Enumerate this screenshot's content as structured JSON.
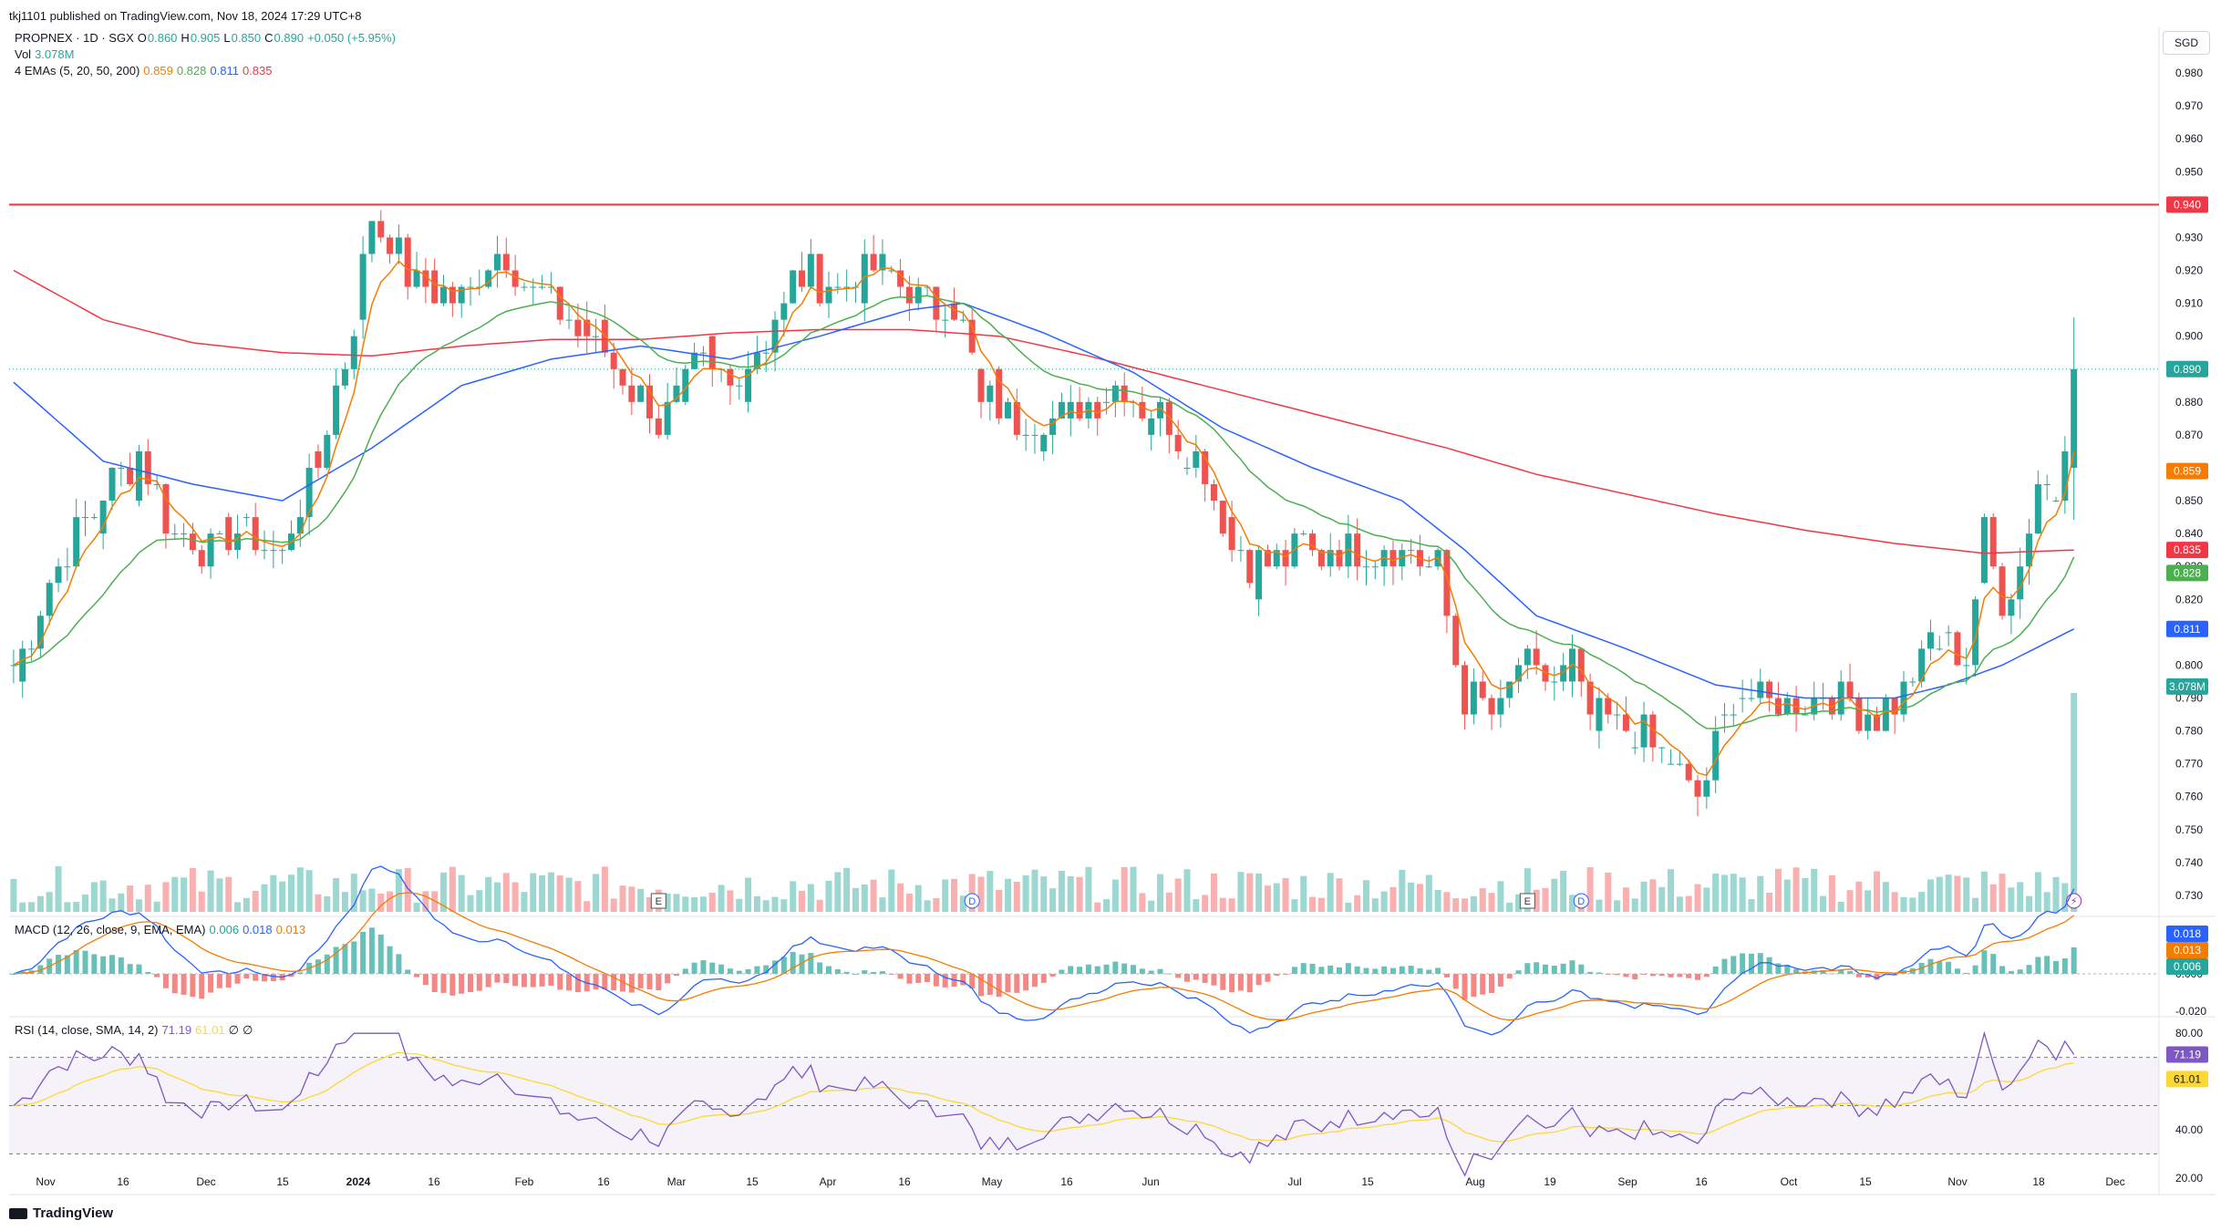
{
  "header": {
    "published": "tkj1101 published on TradingView.com, Nov 18, 2024 17:29 UTC+8",
    "currency": "SGD",
    "brand": "TradingView"
  },
  "legend": {
    "symbol": "PROPNEX · 1D · SGX",
    "o_label": "O",
    "o_value": "0.860",
    "h_label": "H",
    "h_value": "0.905",
    "l_label": "L",
    "l_value": "0.850",
    "c_label": "C",
    "c_value": "0.890",
    "change": "+0.050 (+5.95%)",
    "vol_label": "Vol",
    "vol_value": "3.078M",
    "ema_label": "4 EMAs (5, 20, 50, 200)",
    "ema_values": [
      "0.859",
      "0.828",
      "0.811",
      "0.835"
    ],
    "macd_label": "MACD (12, 26, close, 9, EMA, EMA)",
    "macd_values": [
      "0.006",
      "0.018",
      "0.013"
    ],
    "rsi_label": "RSI (14, close, SMA, 14, 2)",
    "rsi_values": [
      "71.19",
      "61.01",
      "∅",
      "∅"
    ]
  },
  "colors": {
    "up": "#26a69a",
    "down": "#ef5350",
    "ema5": "#f57c00",
    "ema20": "#4caf50",
    "ema50": "#2962ff",
    "ema200": "#f23645",
    "rsi": "#7e57c2",
    "rsi_ma": "#fdd835",
    "level": "#f23645"
  },
  "chart_data": {
    "type": "candlestick",
    "symbol": "PROPNEX",
    "exchange": "SGX",
    "interval": "1D",
    "currency": "SGD",
    "ylim": [
      0.725,
      0.99
    ],
    "price_ticks": [
      "0.980",
      "0.970",
      "0.960",
      "0.950",
      "0.940",
      "0.930",
      "0.920",
      "0.910",
      "0.900",
      "0.890",
      "0.880",
      "0.870",
      "0.860",
      "0.850",
      "0.840",
      "0.830",
      "0.820",
      "0.810",
      "0.800",
      "0.790",
      "0.780",
      "0.770",
      "0.760",
      "0.750",
      "0.740",
      "0.730"
    ],
    "x_labels": [
      "Nov",
      "16",
      "Dec",
      "15",
      "2024",
      "16",
      "Feb",
      "16",
      "Mar",
      "15",
      "Apr",
      "16",
      "May",
      "16",
      "Jun",
      "Jul",
      "15",
      "Aug",
      "19",
      "Sep",
      "16",
      "Oct",
      "15",
      "Nov",
      "18",
      "Dec"
    ],
    "horizontal_line": 0.94,
    "last_price": 0.89,
    "price_badges": [
      "0.940",
      "0.890",
      "0.859",
      "0.835",
      "0.828",
      "0.811",
      "3.078M"
    ],
    "event_markers": [
      "E",
      "D",
      "E",
      "D",
      "⚡"
    ],
    "close_anchors": [
      [
        0,
        0.8
      ],
      [
        6,
        0.835
      ],
      [
        10,
        0.852
      ],
      [
        14,
        0.865
      ],
      [
        18,
        0.84
      ],
      [
        22,
        0.835
      ],
      [
        26,
        0.84
      ],
      [
        30,
        0.835
      ],
      [
        34,
        0.86
      ],
      [
        38,
        0.905
      ],
      [
        40,
        0.935
      ],
      [
        42,
        0.93
      ],
      [
        45,
        0.915
      ],
      [
        50,
        0.91
      ],
      [
        54,
        0.925
      ],
      [
        58,
        0.915
      ],
      [
        62,
        0.905
      ],
      [
        66,
        0.895
      ],
      [
        70,
        0.88
      ],
      [
        72,
        0.875
      ],
      [
        76,
        0.89
      ],
      [
        80,
        0.885
      ],
      [
        84,
        0.9
      ],
      [
        88,
        0.92
      ],
      [
        92,
        0.915
      ],
      [
        96,
        0.92
      ],
      [
        100,
        0.915
      ],
      [
        106,
        0.905
      ],
      [
        108,
        0.88
      ],
      [
        112,
        0.875
      ],
      [
        116,
        0.875
      ],
      [
        120,
        0.88
      ],
      [
        124,
        0.885
      ],
      [
        128,
        0.875
      ],
      [
        132,
        0.865
      ],
      [
        136,
        0.835
      ],
      [
        140,
        0.83
      ],
      [
        144,
        0.835
      ],
      [
        148,
        0.835
      ],
      [
        152,
        0.835
      ],
      [
        156,
        0.835
      ],
      [
        159,
        0.83
      ],
      [
        162,
        0.79
      ],
      [
        166,
        0.785
      ],
      [
        168,
        0.8
      ],
      [
        172,
        0.795
      ],
      [
        174,
        0.8
      ],
      [
        176,
        0.785
      ],
      [
        180,
        0.78
      ],
      [
        184,
        0.775
      ],
      [
        188,
        0.76
      ],
      [
        190,
        0.775
      ],
      [
        192,
        0.79
      ],
      [
        196,
        0.79
      ],
      [
        200,
        0.79
      ],
      [
        204,
        0.79
      ],
      [
        208,
        0.785
      ],
      [
        212,
        0.795
      ],
      [
        214,
        0.81
      ],
      [
        216,
        0.805
      ],
      [
        218,
        0.8
      ],
      [
        220,
        0.84
      ],
      [
        222,
        0.82
      ],
      [
        224,
        0.83
      ],
      [
        226,
        0.855
      ],
      [
        228,
        0.85
      ],
      [
        230,
        0.89
      ]
    ],
    "ema200_anchors": [
      [
        0,
        0.92
      ],
      [
        10,
        0.905
      ],
      [
        20,
        0.898
      ],
      [
        30,
        0.895
      ],
      [
        40,
        0.894
      ],
      [
        50,
        0.897
      ],
      [
        60,
        0.899
      ],
      [
        70,
        0.899
      ],
      [
        80,
        0.901
      ],
      [
        90,
        0.902
      ],
      [
        100,
        0.902
      ],
      [
        110,
        0.9
      ],
      [
        120,
        0.894
      ],
      [
        130,
        0.887
      ],
      [
        140,
        0.88
      ],
      [
        150,
        0.873
      ],
      [
        160,
        0.866
      ],
      [
        170,
        0.858
      ],
      [
        180,
        0.852
      ],
      [
        190,
        0.846
      ],
      [
        200,
        0.841
      ],
      [
        210,
        0.837
      ],
      [
        220,
        0.834
      ],
      [
        230,
        0.835
      ]
    ],
    "ema50_anchors": [
      [
        0,
        0.886
      ],
      [
        10,
        0.862
      ],
      [
        20,
        0.855
      ],
      [
        30,
        0.85
      ],
      [
        40,
        0.866
      ],
      [
        50,
        0.885
      ],
      [
        60,
        0.893
      ],
      [
        70,
        0.897
      ],
      [
        80,
        0.893
      ],
      [
        90,
        0.9
      ],
      [
        100,
        0.908
      ],
      [
        106,
        0.91
      ],
      [
        115,
        0.901
      ],
      [
        125,
        0.889
      ],
      [
        135,
        0.872
      ],
      [
        145,
        0.86
      ],
      [
        155,
        0.85
      ],
      [
        162,
        0.835
      ],
      [
        170,
        0.815
      ],
      [
        180,
        0.805
      ],
      [
        190,
        0.794
      ],
      [
        200,
        0.79
      ],
      [
        210,
        0.79
      ],
      [
        216,
        0.794
      ],
      [
        222,
        0.8
      ],
      [
        230,
        0.811
      ]
    ],
    "volume_label": "3.078M",
    "macd": {
      "fast": 12,
      "slow": 26,
      "signal": 9,
      "histogram": 0.006,
      "macd": 0.018,
      "signal_value": 0.013,
      "ticks": [
        "0.000",
        "-0.020"
      ]
    },
    "rsi": {
      "length": 14,
      "value": 71.19,
      "ma": 61.01,
      "ticks": [
        "80.00",
        "40.00",
        "20.00"
      ],
      "bands": [
        70,
        50,
        30
      ]
    }
  }
}
